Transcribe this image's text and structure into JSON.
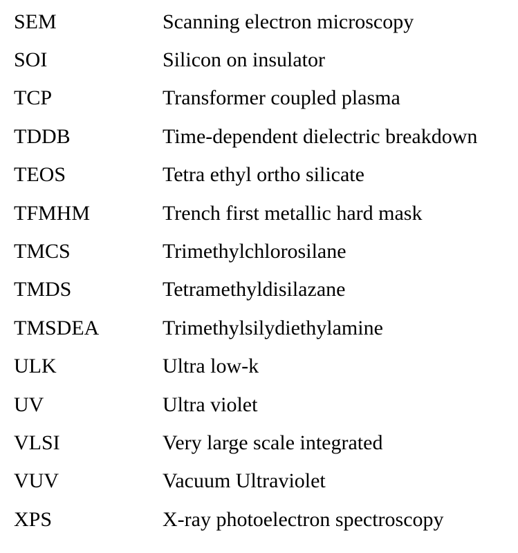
{
  "abbreviations": [
    {
      "term": "SEM",
      "definition": "Scanning electron microscopy"
    },
    {
      "term": "SOI",
      "definition": "Silicon on insulator"
    },
    {
      "term": "TCP",
      "definition": "Transformer coupled plasma"
    },
    {
      "term": "TDDB",
      "definition": "Time-dependent dielectric breakdown"
    },
    {
      "term": "TEOS",
      "definition": "Tetra ethyl ortho silicate"
    },
    {
      "term": "TFMHM",
      "definition": "Trench first metallic hard mask"
    },
    {
      "term": "TMCS",
      "definition": "Trimethylchlorosilane"
    },
    {
      "term": "TMDS",
      "definition": "Tetramethyldisilazane"
    },
    {
      "term": "TMSDEA",
      "definition": "Trimethylsilydiethylamine"
    },
    {
      "term": "ULK",
      "definition": "Ultra low-k"
    },
    {
      "term": "UV",
      "definition": "Ultra violet"
    },
    {
      "term": "VLSI",
      "definition": "Very large scale integrated"
    },
    {
      "term": "VUV",
      "definition": "Vacuum Ultraviolet"
    },
    {
      "term": "XPS",
      "definition": "X-ray photoelectron spectroscopy"
    }
  ]
}
